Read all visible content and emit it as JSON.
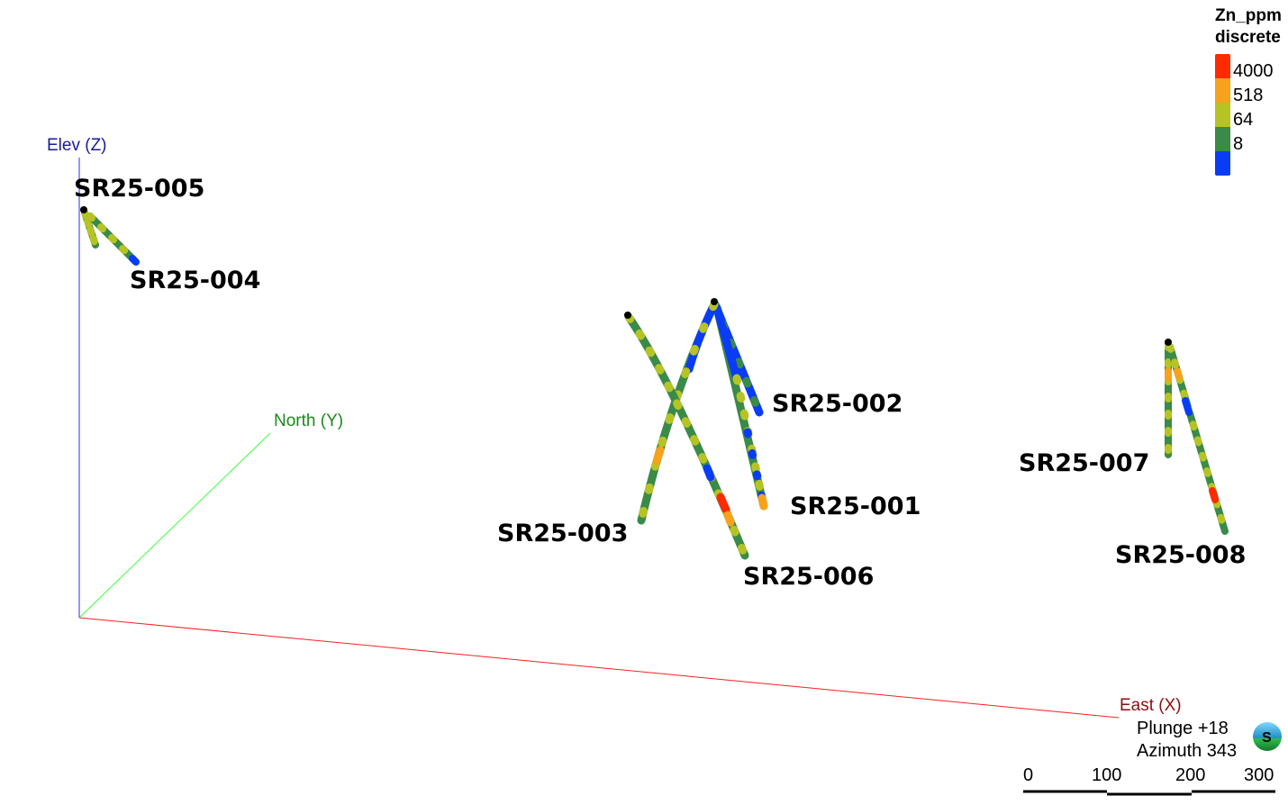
{
  "axes": {
    "z_label": "Elev (Z)",
    "y_label": "North (Y)",
    "x_label": "East (X)"
  },
  "drillholes": [
    {
      "id": "SR25-005"
    },
    {
      "id": "SR25-004"
    },
    {
      "id": "SR25-002"
    },
    {
      "id": "SR25-001"
    },
    {
      "id": "SR25-003"
    },
    {
      "id": "SR25-006"
    },
    {
      "id": "SR25-007"
    },
    {
      "id": "SR25-008"
    }
  ],
  "legend": {
    "title": "Zn_ppm",
    "subtitle": "discrete",
    "bins": [
      {
        "label": "4000",
        "color": "#ff2a00"
      },
      {
        "label": "518",
        "color": "#f7a21c"
      },
      {
        "label": "64",
        "color": "#b5c424"
      },
      {
        "label": "8",
        "color": "#3a8a48"
      },
      {
        "label": "",
        "color": "#0b3cf5"
      }
    ]
  },
  "view": {
    "plunge": "Plunge +18",
    "azimuth": "Azimuth 343",
    "compass_letter": "S"
  },
  "scale_bar": {
    "ticks": [
      "0",
      "100",
      "200",
      "300"
    ]
  }
}
